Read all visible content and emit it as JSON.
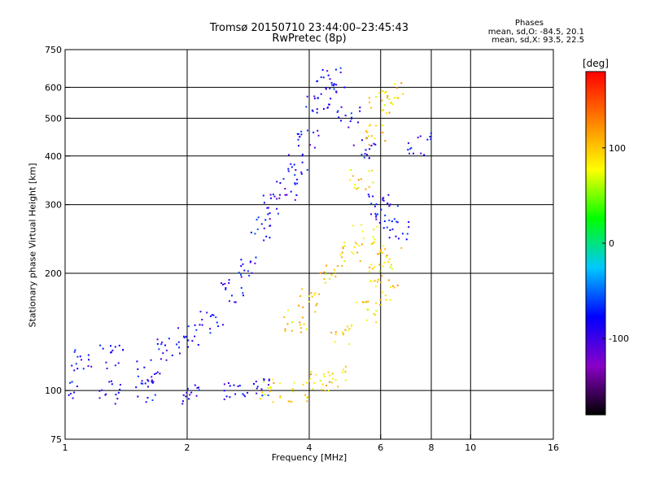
{
  "chart_data": {
    "type": "scatter",
    "title": "Tromsø 20150710 23:44:00–23:45:43",
    "subtitle": "RwPretec (8p)",
    "xlabel": "Frequency [MHz]",
    "ylabel": "Stationary phase Virtual Height [km]",
    "x_scale": "log",
    "y_scale": "log",
    "xlim": [
      1,
      16
    ],
    "ylim": [
      75,
      750
    ],
    "x_ticks": [
      1,
      2,
      4,
      6,
      8,
      10,
      16
    ],
    "x_tick_labels": [
      "1",
      "2",
      "4",
      "6",
      "8",
      "10",
      "16"
    ],
    "y_ticks": [
      75,
      100,
      200,
      300,
      400,
      500,
      600,
      750
    ],
    "y_tick_labels": [
      "75",
      "100",
      "200",
      "300",
      "400",
      "500",
      "600",
      "750"
    ],
    "x_gridlines": [
      2,
      4,
      6,
      8,
      10
    ],
    "y_gridlines": [
      100,
      200,
      300,
      400,
      500,
      600
    ],
    "grid": true,
    "colorbar": {
      "label": "[deg]",
      "range": [
        -180,
        180
      ],
      "ticks": [
        100,
        0,
        -100
      ],
      "tick_labels": [
        "100",
        "0",
        "-100"
      ],
      "colormap": [
        "#000000",
        "#8a00c8",
        "#0000ff",
        "#00c8ff",
        "#00ff00",
        "#ffff00",
        "#ff8000",
        "#ff0000"
      ]
    },
    "stats": {
      "header": "Phases",
      "o_line": "mean, sd,O: -84.5, 20.1",
      "x_line": "mean, sd,X: 93.5, 22.5"
    },
    "series": [
      {
        "name": "O",
        "color_phase": -84.5,
        "description_points": [
          [
            1.0,
            100
          ],
          [
            1.3,
            99
          ],
          [
            1.6,
            100
          ],
          [
            2.0,
            99
          ],
          [
            2.6,
            100
          ],
          [
            3.0,
            100
          ],
          [
            1.1,
            120
          ],
          [
            1.3,
            122
          ],
          [
            1.6,
            112
          ],
          [
            1.8,
            128
          ],
          [
            2.0,
            138
          ],
          [
            2.3,
            150
          ],
          [
            2.6,
            180
          ],
          [
            2.8,
            205
          ],
          [
            3.0,
            260
          ],
          [
            3.2,
            300
          ],
          [
            3.5,
            330
          ],
          [
            3.8,
            380
          ],
          [
            4.0,
            450
          ],
          [
            4.2,
            550
          ],
          [
            4.4,
            600
          ],
          [
            4.6,
            630
          ],
          [
            5.0,
            500
          ],
          [
            5.5,
            420
          ],
          [
            6.0,
            300
          ],
          [
            6.2,
            280
          ],
          [
            6.6,
            260
          ],
          [
            7.5,
            430
          ]
        ]
      },
      {
        "name": "X",
        "color_phase": 93.5,
        "description_points": [
          [
            3.2,
            100
          ],
          [
            3.8,
            100
          ],
          [
            4.3,
            105
          ],
          [
            4.6,
            108
          ],
          [
            3.7,
            150
          ],
          [
            4.0,
            170
          ],
          [
            4.5,
            200
          ],
          [
            5.0,
            230
          ],
          [
            5.5,
            250
          ],
          [
            6.0,
            200
          ],
          [
            6.2,
            180
          ],
          [
            5.4,
            350
          ],
          [
            5.8,
            450
          ],
          [
            6.0,
            550
          ],
          [
            6.5,
            580
          ],
          [
            4.8,
            140
          ],
          [
            5.6,
            160
          ],
          [
            6.3,
            220
          ]
        ]
      }
    ]
  }
}
